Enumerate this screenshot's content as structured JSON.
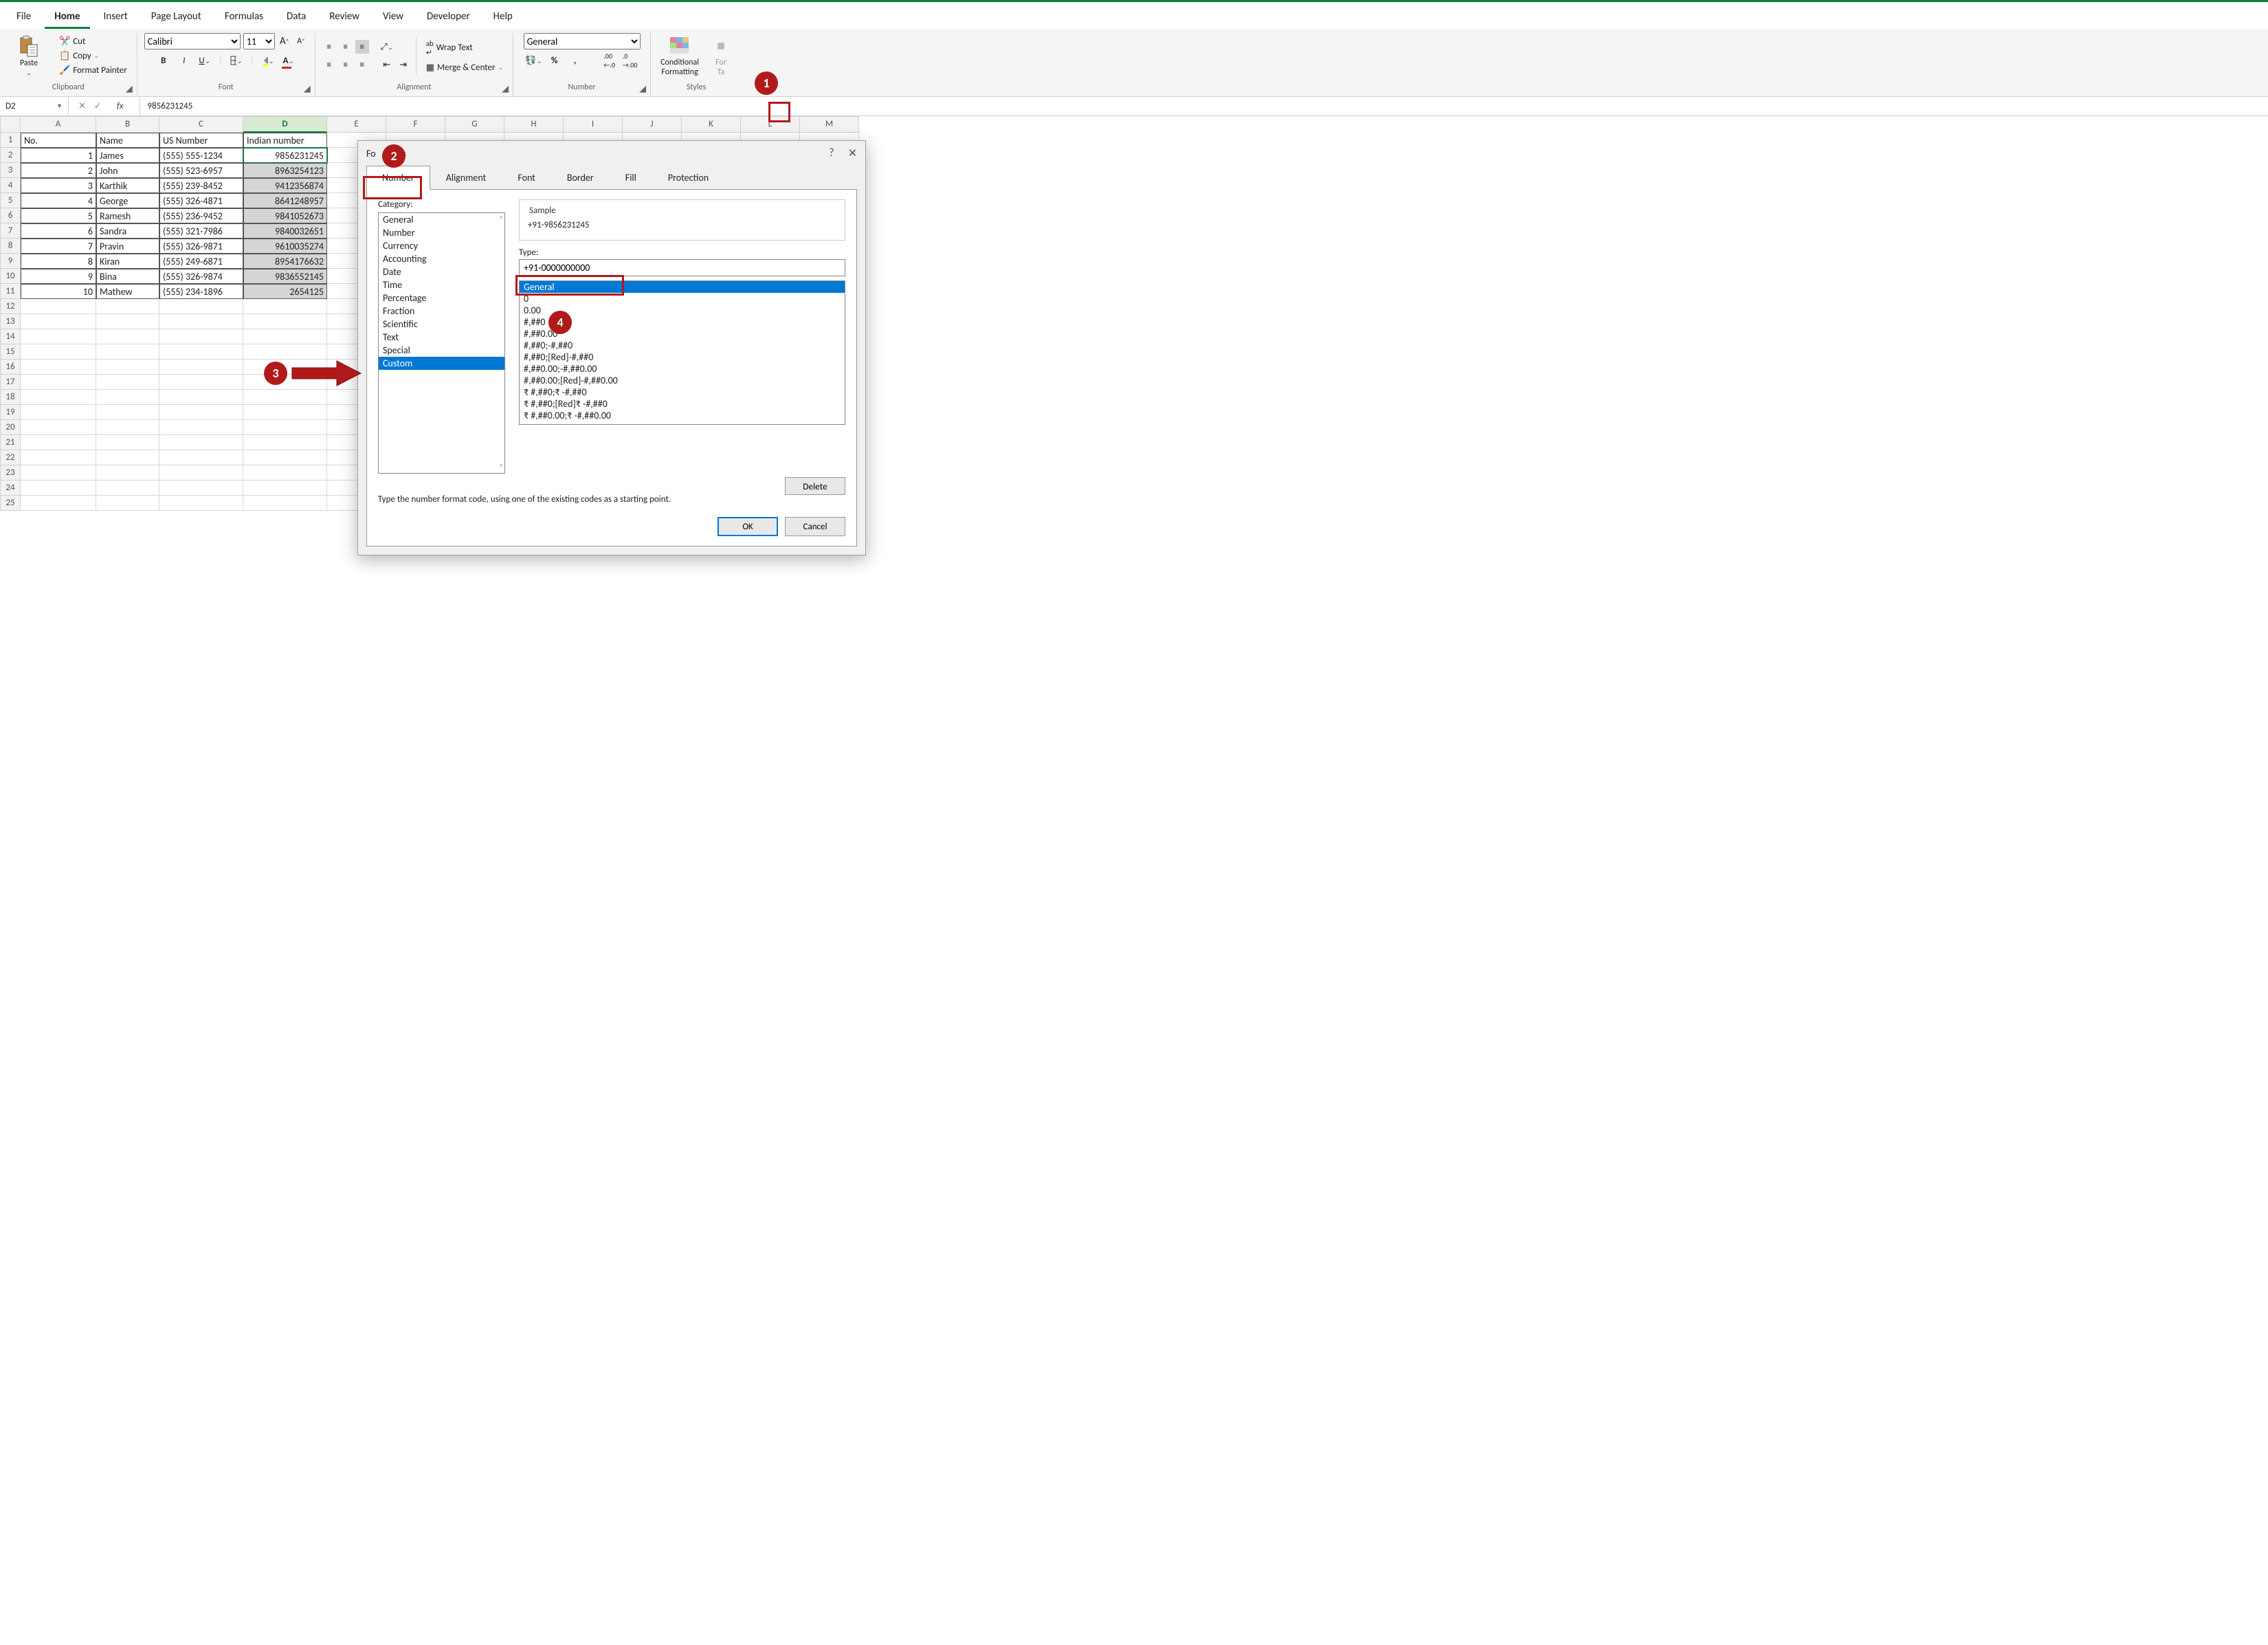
{
  "ribbonTabs": [
    "File",
    "Home",
    "Insert",
    "Page Layout",
    "Formulas",
    "Data",
    "Review",
    "View",
    "Developer",
    "Help"
  ],
  "activeTab": "Home",
  "clipboard": {
    "paste": "Paste",
    "cut": "Cut",
    "copy": "Copy",
    "painter": "Format Painter",
    "label": "Clipboard"
  },
  "font": {
    "name": "Calibri",
    "size": "11",
    "label": "Font"
  },
  "alignment": {
    "wrap": "Wrap Text",
    "merge": "Merge & Center",
    "label": "Alignment"
  },
  "number": {
    "format": "General",
    "label": "Number"
  },
  "styles": {
    "cond": "Conditional Formatting",
    "fmtTable": "Format as Table",
    "label": "Styles"
  },
  "nameBox": "D2",
  "formulaValue": "9856231245",
  "columns": [
    "A",
    "B",
    "C",
    "D",
    "E",
    "F",
    "G",
    "H",
    "I",
    "J",
    "K",
    "L",
    "M"
  ],
  "selectedCol": "D",
  "headers": {
    "A": "No.",
    "B": "Name",
    "C": "US Number",
    "D": "Indian number"
  },
  "rows": [
    {
      "n": "1",
      "name": "James",
      "us": "(555) 555-1234",
      "in": "9856231245"
    },
    {
      "n": "2",
      "name": "John",
      "us": "(555) 523-6957",
      "in": "8963254123"
    },
    {
      "n": "3",
      "name": "Karthik",
      "us": "(555) 239-8452",
      "in": "9412356874"
    },
    {
      "n": "4",
      "name": "George",
      "us": "(555) 326-4871",
      "in": "8641248957"
    },
    {
      "n": "5",
      "name": "Ramesh",
      "us": "(555) 236-9452",
      "in": "9841052673"
    },
    {
      "n": "6",
      "name": "Sandra",
      "us": "(555) 321-7986",
      "in": "9840032651"
    },
    {
      "n": "7",
      "name": "Pravin",
      "us": "(555) 326-9871",
      "in": "9610035274"
    },
    {
      "n": "8",
      "name": "Kiran",
      "us": "(555) 249-6871",
      "in": "8954176632"
    },
    {
      "n": "9",
      "name": "Bina",
      "us": "(555) 326-9874",
      "in": "9836552145"
    },
    {
      "n": "10",
      "name": "Mathew",
      "us": "(555) 234-1896",
      "in": "2654125"
    }
  ],
  "emptyRows": 14,
  "dialog": {
    "title": "Format Cells",
    "tabs": [
      "Number",
      "Alignment",
      "Font",
      "Border",
      "Fill",
      "Protection"
    ],
    "activeTab": "Number",
    "categoryLabel": "Category:",
    "categories": [
      "General",
      "Number",
      "Currency",
      "Accounting",
      "Date",
      "Time",
      "Percentage",
      "Fraction",
      "Scientific",
      "Text",
      "Special",
      "Custom"
    ],
    "selectedCategory": "Custom",
    "sampleLabel": "Sample",
    "sampleValue": "+91-9856231245",
    "typeLabel": "Type:",
    "typeValue": "+91-0000000000",
    "formats": [
      "General",
      "0",
      "0.00",
      "#,##0",
      "#,##0.00",
      "#,##0;-#,##0",
      "#,##0;[Red]-#,##0",
      "#,##0.00;-#,##0.00",
      "#,##0.00;[Red]-#,##0.00",
      "₹ #,##0;₹ -#,##0",
      "₹ #,##0;[Red]₹ -#,##0",
      "₹ #,##0.00;₹ -#,##0.00"
    ],
    "selectedFormat": "General",
    "hint": "Type the number format code, using one of the existing codes as a starting point.",
    "delete": "Delete",
    "ok": "OK",
    "cancel": "Cancel"
  },
  "callouts": {
    "c1": "1",
    "c2": "2",
    "c3": "3",
    "c4": "4"
  }
}
